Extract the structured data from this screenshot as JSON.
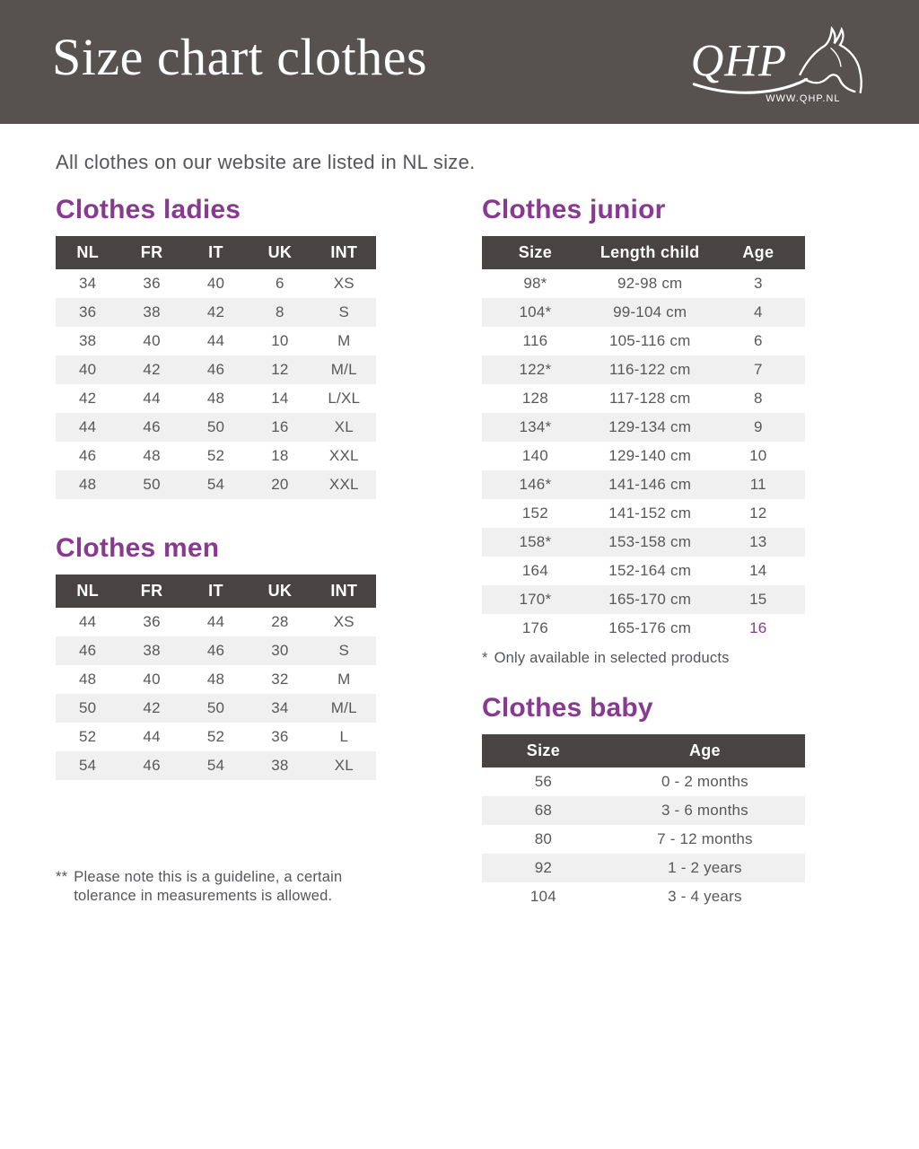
{
  "header": {
    "title": "Size chart clothes",
    "logo_text": "QHP",
    "logo_url": "WWW.QHP.NL"
  },
  "intro": "All clothes on our website are listed in NL size.",
  "colors": {
    "banner_background": "#575150",
    "table_header_background": "#494444",
    "accent_purple": "#883a90",
    "alt_row_background": "#f1f0f0",
    "body_text": "#57585a"
  },
  "sections": {
    "ladies": {
      "heading": "Clothes ladies",
      "columns": [
        "NL",
        "FR",
        "IT",
        "UK",
        "INT"
      ],
      "rows": [
        [
          "34",
          "36",
          "40",
          "6",
          "XS"
        ],
        [
          "36",
          "38",
          "42",
          "8",
          "S"
        ],
        [
          "38",
          "40",
          "44",
          "10",
          "M"
        ],
        [
          "40",
          "42",
          "46",
          "12",
          "M/L"
        ],
        [
          "42",
          "44",
          "48",
          "14",
          "L/XL"
        ],
        [
          "44",
          "46",
          "50",
          "16",
          "XL"
        ],
        [
          "46",
          "48",
          "52",
          "18",
          "XXL"
        ],
        [
          "48",
          "50",
          "54",
          "20",
          "XXL"
        ]
      ]
    },
    "men": {
      "heading": "Clothes men",
      "columns": [
        "NL",
        "FR",
        "IT",
        "UK",
        "INT"
      ],
      "rows": [
        [
          "44",
          "36",
          "44",
          "28",
          "XS"
        ],
        [
          "46",
          "38",
          "46",
          "30",
          "S"
        ],
        [
          "48",
          "40",
          "48",
          "32",
          "M"
        ],
        [
          "50",
          "42",
          "50",
          "34",
          "M/L"
        ],
        [
          "52",
          "44",
          "52",
          "36",
          "L"
        ],
        [
          "54",
          "46",
          "54",
          "38",
          "XL"
        ]
      ]
    },
    "junior": {
      "heading": "Clothes junior",
      "columns": [
        "Size",
        "Length child",
        "Age"
      ],
      "rows": [
        [
          "98*",
          "92-98 cm",
          "3"
        ],
        [
          "104*",
          "99-104 cm",
          "4"
        ],
        [
          "116",
          "105-116 cm",
          "6"
        ],
        [
          "122*",
          "116-122 cm",
          "7"
        ],
        [
          "128",
          "117-128 cm",
          "8"
        ],
        [
          "134*",
          "129-134 cm",
          "9"
        ],
        [
          "140",
          "129-140 cm",
          "10"
        ],
        [
          "146*",
          "141-146 cm",
          "11"
        ],
        [
          "152",
          "141-152 cm",
          "12"
        ],
        [
          "158*",
          "153-158 cm",
          "13"
        ],
        [
          "164",
          "152-164 cm",
          "14"
        ],
        [
          "170*",
          "165-170 cm",
          "15"
        ],
        [
          "176",
          "165-176 cm",
          "16"
        ]
      ],
      "highlight_cells": [
        [
          12,
          2
        ]
      ],
      "footnote_marker": "*",
      "footnote_text": "Only available in selected products"
    },
    "baby": {
      "heading": "Clothes baby",
      "columns": [
        "Size",
        "Age"
      ],
      "rows": [
        [
          "56",
          "0 - 2 months"
        ],
        [
          "68",
          "3 - 6 months"
        ],
        [
          "80",
          "7 - 12 months"
        ],
        [
          "92",
          "1 - 2 years"
        ],
        [
          "104",
          "3 - 4 years"
        ]
      ]
    }
  },
  "bottom_footnote": {
    "marker": "**",
    "line1": "Please note this is a guideline, a certain",
    "line2": "tolerance in measurements is allowed."
  }
}
